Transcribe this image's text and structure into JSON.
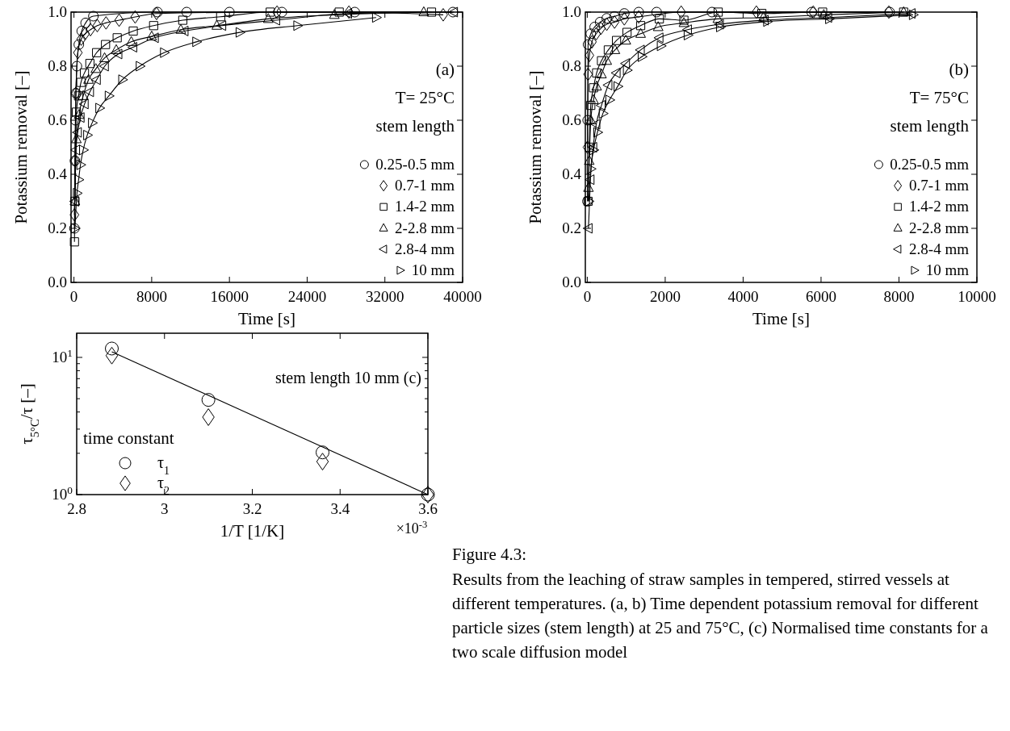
{
  "chart_data": [
    {
      "type": "line",
      "xlabel": "Time [s]",
      "ylabel": "Potassium removal [–]",
      "xlim": [
        -300,
        40000
      ],
      "xticks": [
        0,
        8000,
        16000,
        24000,
        32000,
        40000
      ],
      "ylim": [
        0,
        1
      ],
      "yticks": [
        {
          "value": 0,
          "label": "0.0"
        },
        {
          "value": 0.2,
          "label": "0.2"
        },
        {
          "value": 0.4,
          "label": "0.4"
        },
        {
          "value": 0.6,
          "label": "0.6"
        },
        {
          "value": 0.8,
          "label": "0.8"
        },
        {
          "value": 1,
          "label": "1.0"
        }
      ],
      "line_style": "solid",
      "legend": "bottom right",
      "legend_title": "stem length",
      "annotations": [
        "(a)",
        "T= 25°C"
      ],
      "series": [
        {
          "name": "0.25-0.5 mm",
          "color": "#000000",
          "marker": "circle",
          "x": [
            50,
            100,
            150,
            200,
            300,
            500,
            800,
            1200,
            2000,
            8600,
            11600,
            16000,
            21400,
            28900,
            39000
          ],
          "values": [
            0.2,
            0.45,
            0.6,
            0.7,
            0.8,
            0.88,
            0.93,
            0.96,
            0.985,
            1,
            1,
            1,
            1,
            1,
            1
          ]
        },
        {
          "name": "0.7-1 mm",
          "color": "#000000",
          "marker": "diamond",
          "x": [
            50,
            100,
            200,
            400,
            750,
            1150,
            1700,
            2400,
            3300,
            4650,
            6300,
            8500,
            20900,
            28300,
            38000
          ],
          "values": [
            0.25,
            0.45,
            0.7,
            0.85,
            0.9,
            0.92,
            0.935,
            0.95,
            0.96,
            0.97,
            0.982,
            0.995,
            1,
            1,
            0.99
          ]
        },
        {
          "name": "1.4-2 mm",
          "color": "#000000",
          "marker": "square",
          "x": [
            50,
            100,
            250,
            470,
            720,
            1080,
            1640,
            2330,
            3250,
            4450,
            6100,
            8200,
            11200,
            15100,
            20200,
            27300,
            36800
          ],
          "values": [
            0.15,
            0.3,
            0.63,
            0.69,
            0.74,
            0.775,
            0.81,
            0.85,
            0.88,
            0.905,
            0.93,
            0.95,
            0.97,
            0.983,
            1,
            1,
            1
          ]
        },
        {
          "name": "2-2.8 mm",
          "color": "#000000",
          "marker": "triangle",
          "x": [
            100,
            250,
            530,
            950,
            1500,
            2250,
            3150,
            4350,
            5900,
            8000,
            11000,
            14700,
            20000,
            26800,
            36000
          ],
          "values": [
            0.3,
            0.53,
            0.62,
            0.69,
            0.75,
            0.79,
            0.83,
            0.86,
            0.89,
            0.91,
            0.935,
            0.95,
            0.975,
            0.99,
            1
          ]
        },
        {
          "name": "2.8-4 mm",
          "color": "#000000",
          "marker": "triangle-left",
          "x": [
            100,
            200,
            390,
            670,
            1090,
            1640,
            2340,
            3170,
            4560,
            6090,
            8310,
            11370,
            15250,
            20800,
            28200,
            39100
          ],
          "values": [
            0.3,
            0.49,
            0.555,
            0.61,
            0.66,
            0.705,
            0.75,
            0.8,
            0.845,
            0.87,
            0.905,
            0.93,
            0.95,
            0.97,
            0.995,
            1
          ]
        },
        {
          "name": "10 mm",
          "color": "#000000",
          "marker": "triangle-right",
          "x": [
            100,
            310,
            480,
            670,
            950,
            1370,
            1870,
            2620,
            3590,
            4980,
            6780,
            9280,
            12600,
            17060,
            23000,
            31100
          ],
          "values": [
            0.2,
            0.33,
            0.38,
            0.435,
            0.49,
            0.545,
            0.59,
            0.645,
            0.69,
            0.75,
            0.8,
            0.85,
            0.89,
            0.925,
            0.95,
            0.98
          ]
        }
      ]
    },
    {
      "type": "line",
      "xlabel": "Time [s]",
      "ylabel": "Potassium removal [–]",
      "xlim": [
        -50,
        10000
      ],
      "xticks": [
        0,
        2000,
        4000,
        6000,
        8000,
        10000
      ],
      "ylim": [
        0,
        1
      ],
      "yticks": [
        {
          "value": 0,
          "label": "0.0"
        },
        {
          "value": 0.2,
          "label": "0.2"
        },
        {
          "value": 0.4,
          "label": "0.4"
        },
        {
          "value": 0.6,
          "label": "0.6"
        },
        {
          "value": 0.8,
          "label": "0.8"
        },
        {
          "value": 1,
          "label": "1.0"
        }
      ],
      "line_style": "solid",
      "legend": "bottom right",
      "legend_title": "stem length",
      "annotations": [
        "(b)",
        "T= 75°C"
      ],
      "series": [
        {
          "name": "0.25-0.5 mm",
          "color": "#000000",
          "marker": "circle",
          "x": [
            5,
            10,
            20,
            90,
            190,
            330,
            500,
            700,
            950,
            1320,
            1780,
            3200,
            5760,
            7760
          ],
          "values": [
            0.3,
            0.6,
            0.88,
            0.92,
            0.945,
            0.963,
            0.977,
            0.984,
            0.995,
            1,
            1,
            1,
            1,
            1
          ]
        },
        {
          "name": "0.7-1 mm",
          "color": "#000000",
          "marker": "diamond",
          "x": [
            5,
            20,
            55,
            120,
            230,
            350,
            500,
            700,
            950,
            1320,
            2410,
            4340,
            5800,
            7740
          ],
          "values": [
            0.5,
            0.77,
            0.84,
            0.89,
            0.92,
            0.94,
            0.955,
            0.963,
            0.975,
            0.982,
            1,
            1,
            1,
            1
          ]
        },
        {
          "name": "1.4-2 mm",
          "color": "#000000",
          "marker": "square",
          "x": [
            20,
            50,
            90,
            160,
            240,
            365,
            540,
            750,
            1020,
            1370,
            1850,
            2480,
            3360,
            4480,
            6040,
            8120
          ],
          "values": [
            0.3,
            0.5,
            0.655,
            0.72,
            0.775,
            0.82,
            0.86,
            0.895,
            0.925,
            0.95,
            0.975,
            0.97,
            1,
            0.995,
            1,
            1
          ]
        },
        {
          "name": "2-2.8 mm",
          "color": "#000000",
          "marker": "triangle",
          "x": [
            30,
            50,
            90,
            160,
            240,
            365,
            500,
            710,
            990,
            1370,
            1820,
            2480,
            3350,
            4520,
            6070,
            8120
          ],
          "values": [
            0.35,
            0.45,
            0.6,
            0.675,
            0.725,
            0.77,
            0.82,
            0.86,
            0.895,
            0.92,
            0.945,
            0.96,
            0.975,
            0.98,
            0.99,
            1
          ]
        },
        {
          "name": "2.8-4 mm",
          "color": "#000000",
          "marker": "triangle-left",
          "x": [
            30,
            80,
            150,
            230,
            365,
            540,
            750,
            990,
            1370,
            1850,
            2580,
            3400,
            4550,
            6180,
            8320
          ],
          "values": [
            0.2,
            0.38,
            0.5,
            0.585,
            0.655,
            0.73,
            0.775,
            0.81,
            0.86,
            0.905,
            0.935,
            0.955,
            0.97,
            0.98,
            0.995
          ]
        },
        {
          "name": "10 mm",
          "color": "#000000",
          "marker": "triangle-right",
          "x": [
            40,
            90,
            160,
            260,
            400,
            570,
            780,
            1020,
            1400,
            1890,
            2580,
            3410,
            4620,
            6210,
            8360
          ],
          "values": [
            0.3,
            0.42,
            0.49,
            0.555,
            0.625,
            0.675,
            0.725,
            0.785,
            0.835,
            0.875,
            0.915,
            0.945,
            0.965,
            0.975,
            0.99
          ]
        }
      ]
    },
    {
      "type": "scatter",
      "log": "y",
      "xlabel": "1/T [1/K]",
      "ylabel": "τ$_{5°C}$/τ [–]",
      "xlim": [
        2.8,
        3.6
      ],
      "xticks": [
        2.8,
        3,
        3.2,
        3.4,
        3.6
      ],
      "ylim": [
        1,
        15
      ],
      "yticks": [
        {
          "value": 1,
          "label": "10$^{0}$"
        },
        {
          "value": 2,
          "label": null
        },
        {
          "value": 3,
          "label": null
        },
        {
          "value": 4,
          "label": null
        },
        {
          "value": 5,
          "label": null
        },
        {
          "value": 6,
          "label": null
        },
        {
          "value": 7,
          "label": null
        },
        {
          "value": 8,
          "label": null
        },
        {
          "value": 9,
          "label": null
        },
        {
          "value": 10,
          "label": "10$^{1}$"
        }
      ],
      "legend": "bottom left",
      "legend_title": "time constant",
      "annotations": [
        "stem length 10 mm (c)",
        "×10$^{-3}$"
      ],
      "series": [
        {
          "name": "τ$_{1}$",
          "color": "#000000",
          "marker": "circle",
          "x": [
            2.88,
            3.1,
            3.36,
            3.6
          ],
          "values": [
            11.6,
            4.9,
            2.03,
            1
          ]
        },
        {
          "name": "τ$_{2}$",
          "color": "#000000",
          "marker": "diamond",
          "x": [
            2.88,
            3.1,
            3.36,
            3.6
          ],
          "values": [
            10.3,
            3.67,
            1.74,
            1
          ]
        },
        {
          "type": "line",
          "color": "#000000",
          "marker": "none",
          "x": [
            2.88,
            3.6
          ],
          "values": [
            11,
            1
          ]
        }
      ]
    },
    {
      "type": "other",
      "title": "Figure 4.3:",
      "annotations": [
        "Results from the leaching of straw samples in tempered, stirred vessels at different temperatures. (a, b) Time dependent potassium removal for different particle sizes (stem length) at 25 and 75°C, (c) Normalised time constants for a two scale diffusion model"
      ]
    }
  ]
}
